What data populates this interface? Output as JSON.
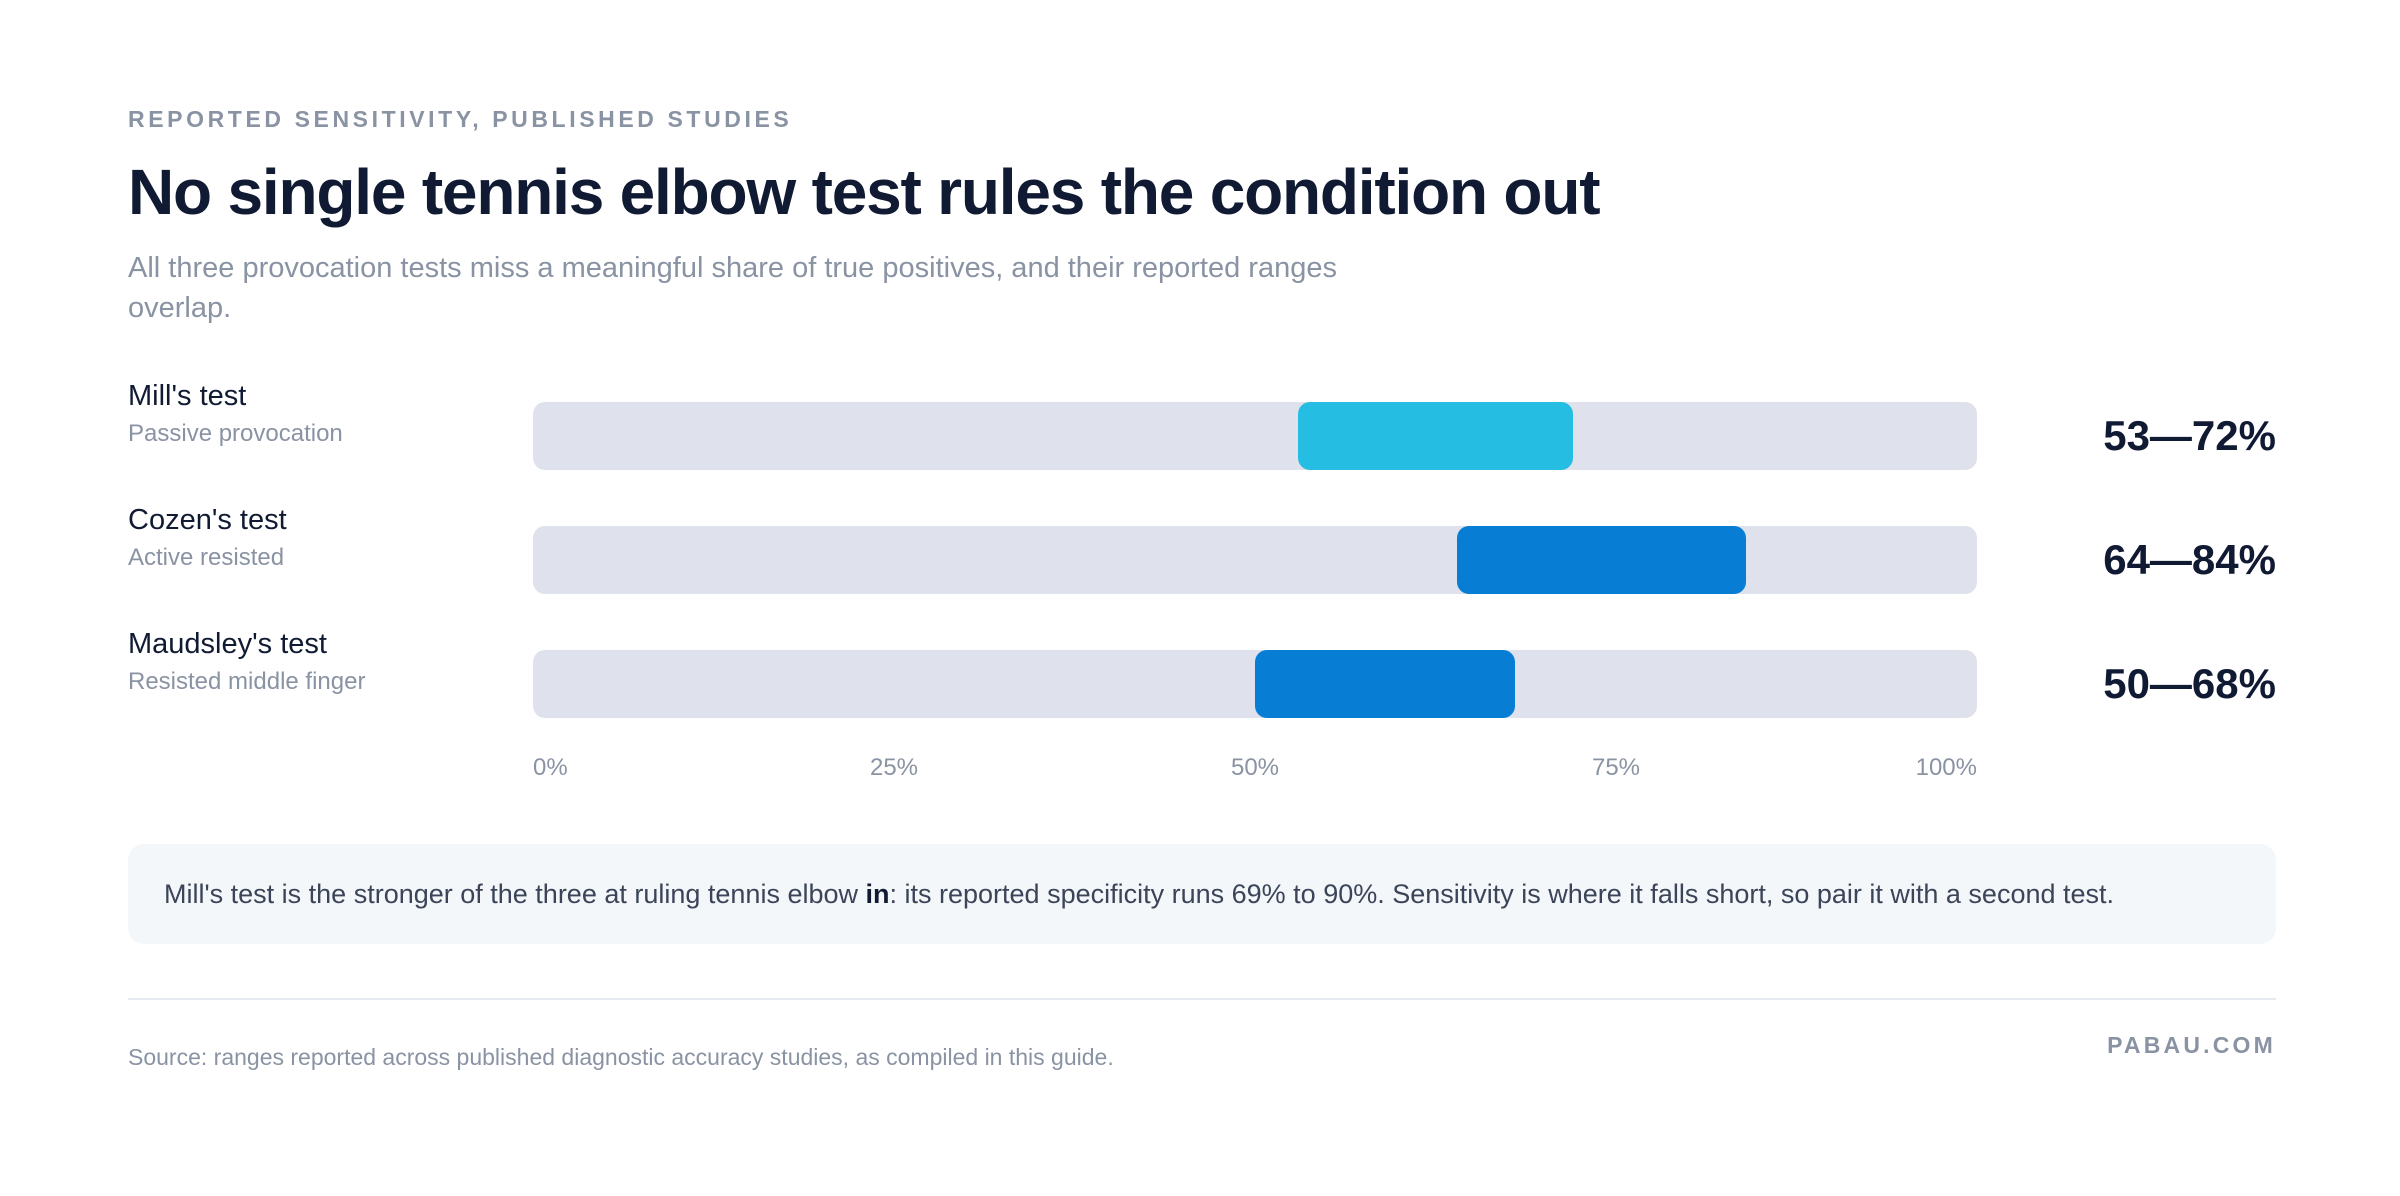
{
  "header": {
    "eyebrow": "REPORTED SENSITIVITY, PUBLISHED STUDIES",
    "title": "No single tennis elbow test rules the condition out",
    "subtitle": "All three provocation tests miss a meaningful share of true positives, and their reported ranges overlap."
  },
  "chart_data": {
    "type": "bar",
    "orientation": "horizontal-range",
    "categories": [
      "Mill's test",
      "Cozen's test",
      "Maudsley's test"
    ],
    "category_descriptions": [
      "Passive provocation",
      "Active resisted",
      "Resisted middle finger"
    ],
    "series": [
      {
        "ranges": [
          [
            53,
            72
          ],
          [
            64,
            84
          ],
          [
            50,
            68
          ]
        ],
        "colors": [
          "#26bde2",
          "#077ed3",
          "#077ed3"
        ]
      }
    ],
    "value_labels": [
      "53—72%",
      "64—84%",
      "50—68%"
    ],
    "xlim": [
      0,
      100
    ],
    "x_ticks": [
      "0%",
      "25%",
      "50%",
      "75%",
      "100%"
    ],
    "grid": false,
    "track_color": "#dfe2ec"
  },
  "note": {
    "before": "Mill's test is the stronger of the three at ruling tennis elbow ",
    "emphasis": "in",
    "after": ": its reported specificity runs 69% to 90%. Sensitivity is where it falls short, so pair it with a second test."
  },
  "footer": {
    "source": "Source: ranges reported across published diagnostic accuracy studies, as compiled in this guide.",
    "brand": "PABAU.COM"
  }
}
